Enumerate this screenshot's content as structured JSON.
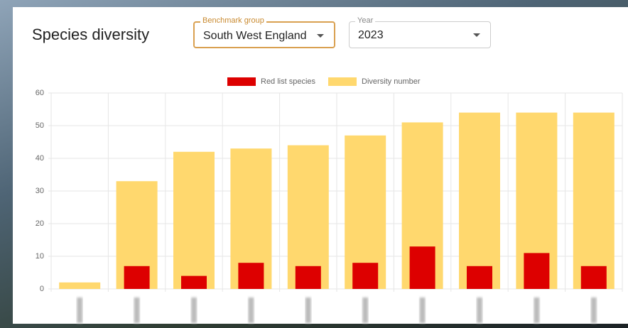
{
  "header": {
    "title": "Species diversity"
  },
  "controls": [
    {
      "label": "Benchmark group",
      "value": "South West England"
    },
    {
      "label": "Year",
      "value": "2023"
    }
  ],
  "chart_data": {
    "type": "bar",
    "categories": [
      null,
      null,
      null,
      null,
      null,
      null,
      null,
      null,
      null,
      null
    ],
    "series": [
      {
        "name": "Red list species",
        "color": "#dd0000",
        "values": [
          null,
          7,
          4,
          8,
          7,
          8,
          13,
          7,
          11,
          7
        ]
      },
      {
        "name": "Diversity number",
        "color": "#ffd86e",
        "values": [
          2,
          33,
          42,
          43,
          44,
          47,
          51,
          54,
          54,
          54
        ]
      }
    ],
    "ylim": [
      0,
      60
    ],
    "yticks": [
      0,
      10,
      20,
      30,
      40,
      50,
      60
    ],
    "grid": true,
    "legend": "top"
  }
}
